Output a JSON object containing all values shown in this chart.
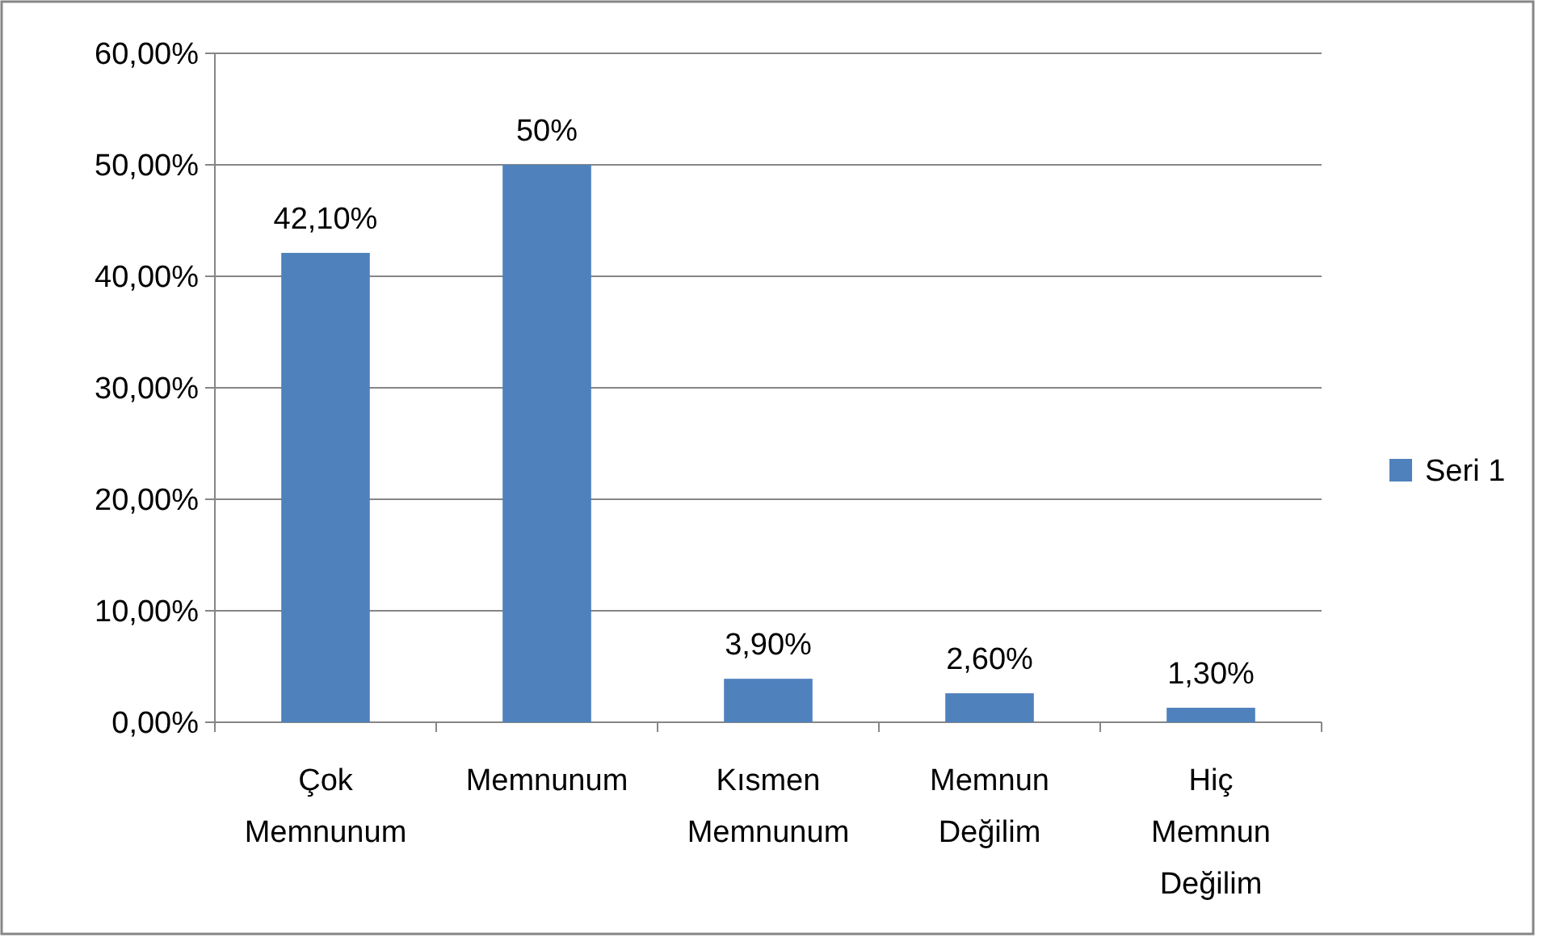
{
  "chart_data": {
    "type": "bar",
    "categories": [
      "Çok Memnunum",
      "Memnunum",
      "Kısmen Memnunum",
      "Memnun Değilim",
      "Hiç Memnun Değilim"
    ],
    "series": [
      {
        "name": "Seri 1",
        "color": "#4f81bd",
        "values": [
          42.1,
          50,
          3.9,
          2.6,
          1.3
        ],
        "value_labels": [
          "42,10%",
          "50%",
          "3,90%",
          "2,60%",
          "1,30%"
        ]
      }
    ],
    "ylim": [
      0,
      60
    ],
    "yticks": [
      {
        "value": 0,
        "label": "0,00%"
      },
      {
        "value": 10,
        "label": "10,00%"
      },
      {
        "value": 20,
        "label": "20,00%"
      },
      {
        "value": 30,
        "label": "30,00%"
      },
      {
        "value": 40,
        "label": "40,00%"
      },
      {
        "value": 50,
        "label": "50,00%"
      },
      {
        "value": 60,
        "label": "60,00%"
      }
    ],
    "grid": "y",
    "legend": "right"
  }
}
